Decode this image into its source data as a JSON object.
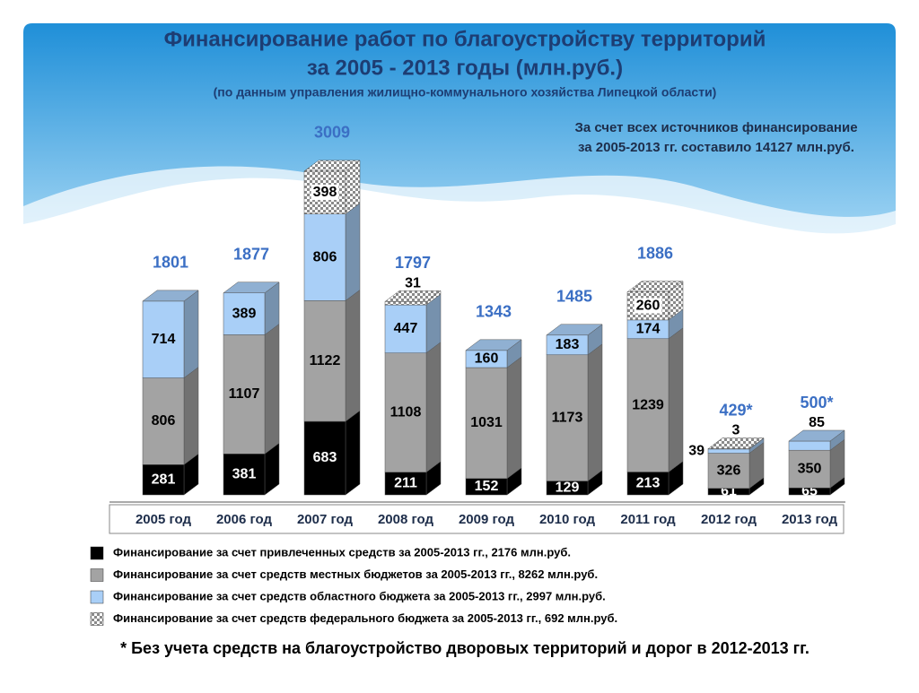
{
  "chart_data": {
    "type": "bar3d",
    "title": "Финансирование работ по благоустройству территорий",
    "title_line2": "за 2005 - 2013 годы (млн.руб.)",
    "subtitle": "(по данным управления жилищно-коммунального хозяйства Липецкой области)",
    "annotation": [
      "За счет всех источников финансирование",
      "за 2005-2013 гг. составило 14127 млн.руб."
    ],
    "footnote": "* Без учета средств на благоустройство дворовых территорий и дорог в 2012-2013 гг.",
    "categories": [
      "2005 год",
      "2006 год",
      "2007 год",
      "2008 год",
      "2009 год",
      "2010 год",
      "2011 год",
      "2012 год",
      "2013 год"
    ],
    "series": [
      {
        "name": "Финансирование за счет привлеченных средств за 2005-2013 гг., 2176 млн.руб.",
        "color": "#000000",
        "label_color": "#ffffff",
        "values": [
          281,
          381,
          683,
          211,
          152,
          129,
          213,
          61,
          65
        ]
      },
      {
        "name": "Финансирование за счет средств местных бюджетов за 2005-2013 гг., 8262 млн.руб.",
        "color": "#a3a3a3",
        "label_color": "#000000",
        "values": [
          806,
          1107,
          1122,
          1108,
          1031,
          1173,
          1239,
          326,
          350
        ]
      },
      {
        "name": "Финансирование за счет средств областного бюджета за 2005-2013 гг., 2997 млн.руб.",
        "color": "#a9cff7",
        "label_color": "#000000",
        "values": [
          714,
          389,
          806,
          447,
          160,
          183,
          174,
          39,
          85
        ]
      },
      {
        "name": "Финансирование за счет средств федерального бюджета за 2005-2013 гг., 692 млн.руб.",
        "color": "#d8d8d8",
        "label_color": "#000000",
        "pattern": "checkered",
        "values": [
          null,
          null,
          398,
          31,
          null,
          null,
          260,
          3,
          null
        ]
      }
    ],
    "totals": [
      1801,
      1877,
      3009,
      1797,
      1343,
      1485,
      1886,
      429,
      500
    ],
    "total_labels": [
      "1801",
      "1877",
      "3009",
      "1797",
      "1343",
      "1485",
      "1886",
      "429*",
      "500*"
    ],
    "total_color": "#3b6fc4"
  }
}
